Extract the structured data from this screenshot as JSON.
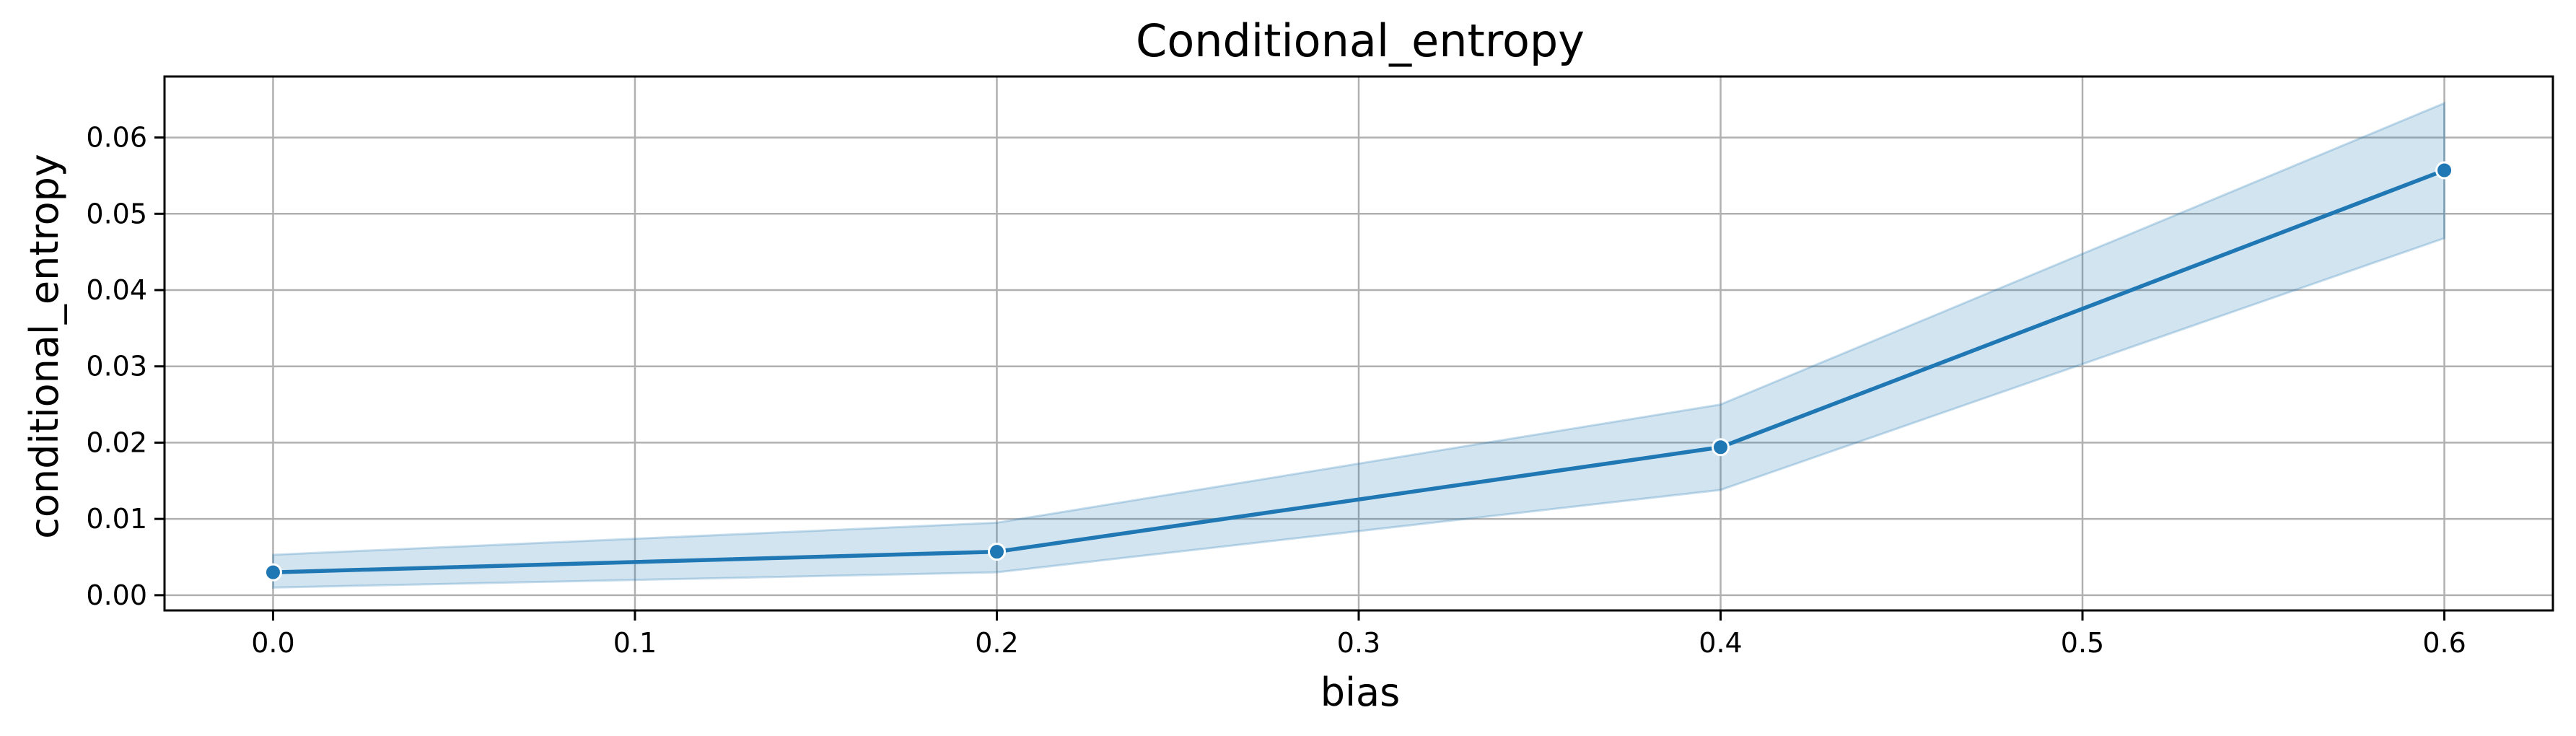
{
  "chart_data": {
    "type": "line",
    "title": "Conditional_entropy",
    "xlabel": "bias",
    "ylabel": "conditional_entropy",
    "xlim": [
      -0.03,
      0.63
    ],
    "ylim": [
      -0.002,
      0.068
    ],
    "x_ticks": [
      0.0,
      0.1,
      0.2,
      0.3,
      0.4,
      0.5,
      0.6
    ],
    "x_tick_labels": [
      "0.0",
      "0.1",
      "0.2",
      "0.3",
      "0.4",
      "0.5",
      "0.6"
    ],
    "y_ticks": [
      0.0,
      0.01,
      0.02,
      0.03,
      0.04,
      0.05,
      0.06
    ],
    "y_tick_labels": [
      "0.00",
      "0.01",
      "0.02",
      "0.03",
      "0.04",
      "0.05",
      "0.06"
    ],
    "grid": true,
    "legend": "none",
    "colors": {
      "line": "#1f77b4",
      "band": "#1f77b4",
      "grid": "#b0b0b0"
    },
    "series": [
      {
        "x": [
          0.0,
          0.2,
          0.4,
          0.6
        ],
        "y": [
          0.003,
          0.0057,
          0.0194,
          0.0557
        ],
        "ci_lower": [
          0.001,
          0.003,
          0.0138,
          0.0468
        ],
        "ci_upper": [
          0.0053,
          0.0095,
          0.025,
          0.0645
        ],
        "markers": true
      }
    ]
  }
}
